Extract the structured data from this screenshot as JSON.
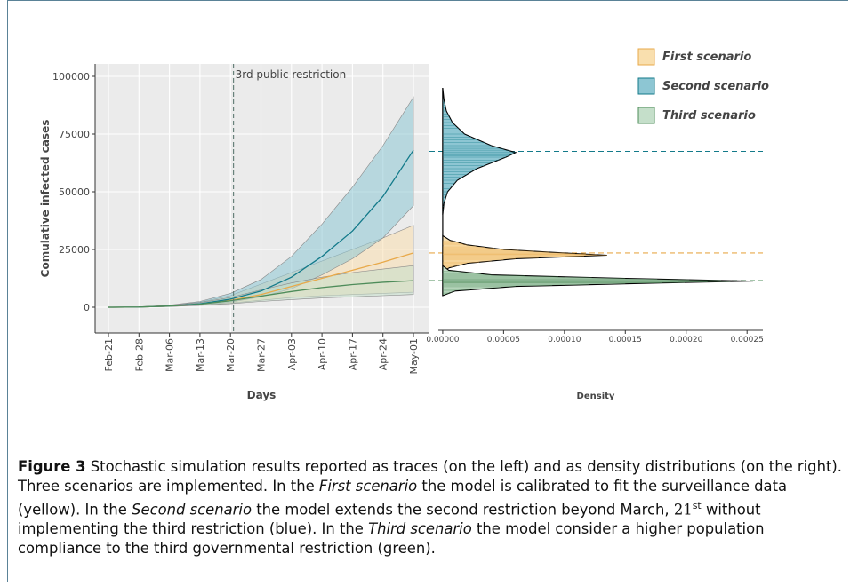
{
  "chart_data": [
    {
      "type": "line",
      "y_label": "Comulative infected cases",
      "x_label": "Days",
      "categories": [
        "Feb-21",
        "Feb-28",
        "Mar-06",
        "Mar-13",
        "Mar-20",
        "Mar-27",
        "Apr-03",
        "Apr-10",
        "Apr-17",
        "Apr-24",
        "May-01"
      ],
      "ylim": [
        -11150,
        105385
      ],
      "yticks": [
        0,
        25000,
        50000,
        75000,
        100000
      ],
      "grid": true,
      "annotations": [
        {
          "text": "3rd public restriction",
          "x": 4.1
        }
      ],
      "series": [
        {
          "name": "First scenario",
          "color": "#e8a94a",
          "fill": "#f9dfae",
          "values": [
            0,
            100,
            500,
            1400,
            3000,
            5500,
            9000,
            12500,
            16000,
            19500,
            23500
          ],
          "upper": [
            0,
            150,
            800,
            2200,
            5000,
            10000,
            15000,
            20000,
            25000,
            30000,
            35500
          ],
          "lower": [
            0,
            50,
            300,
            900,
            1800,
            3000,
            4200,
            5000,
            5500,
            6000,
            6500
          ]
        },
        {
          "name": "Second scenario",
          "color": "#137a8a",
          "fill": "#8dc6d3",
          "values": [
            0,
            100,
            500,
            1500,
            3500,
            7000,
            13000,
            22000,
            33000,
            48000,
            68000
          ],
          "upper": [
            0,
            150,
            900,
            2500,
            6000,
            12000,
            22000,
            36000,
            52000,
            70000,
            91000
          ],
          "lower": [
            0,
            50,
            300,
            1000,
            2200,
            4500,
            8000,
            14000,
            21000,
            30000,
            44000
          ]
        },
        {
          "name": "Third scenario",
          "color": "#4e8c5a",
          "fill": "#c5dfca",
          "values": [
            0,
            100,
            500,
            1300,
            2800,
            4800,
            6800,
            8500,
            9800,
            10800,
            11500
          ],
          "upper": [
            0,
            150,
            800,
            2000,
            4200,
            7500,
            10500,
            13000,
            15000,
            16500,
            18000
          ],
          "lower": [
            0,
            50,
            300,
            800,
            1500,
            2500,
            3300,
            4000,
            4500,
            5000,
            5500
          ]
        }
      ],
      "legend": "top-right"
    },
    {
      "type": "density",
      "x_label": "Density",
      "xlim": [
        -1.09e-05,
        0.000263
      ],
      "xticks": [
        {
          "value": 0,
          "label": "0.00000"
        },
        5e-05,
        {
          "value": 0.0001,
          "label": "0.00010"
        },
        0.00015,
        {
          "value": 0.0002,
          "label": "0.00020"
        },
        0.00025
      ],
      "ylim": [
        -11150,
        105385
      ],
      "series": [
        {
          "color": "#137a8a",
          "fill": "#8dc6d3",
          "reference": 67500,
          "x": [
            40000,
            45000,
            50000,
            55000,
            60000,
            65000,
            67000,
            70000,
            75000,
            80000,
            85000,
            90000,
            95000
          ],
          "values": [
            0,
            1e-06,
            4e-06,
            1.2e-05,
            2.8e-05,
            5.2e-05,
            6e-05,
            4e-05,
            1.8e-05,
            8e-06,
            3e-06,
            1e-06,
            0
          ]
        },
        {
          "color": "#e8a94a",
          "fill": "#f9dfae",
          "reference": 23500,
          "x": [
            15000,
            17000,
            19000,
            21000,
            22500,
            23500,
            25000,
            27000,
            29000,
            31000
          ],
          "values": [
            0,
            5e-06,
            2e-05,
            6e-05,
            0.000135,
            0.0001,
            5e-05,
            2e-05,
            6e-06,
            0
          ]
        },
        {
          "color": "#4e8c5a",
          "fill": "#c5dfca",
          "reference": 11500,
          "x": [
            5000,
            7000,
            9000,
            10500,
            11300,
            12500,
            14000,
            16000,
            18000
          ],
          "values": [
            0,
            1e-05,
            6e-05,
            0.00018,
            0.000255,
            0.00015,
            4e-05,
            5e-06,
            0
          ]
        }
      ]
    }
  ],
  "caption": {
    "label": "Figure 3",
    "parts": [
      "Stochastic simulation results reported as traces (on the left) and as density distributions (on the right). Three scenarios are implemented. In the ",
      "First scenario",
      " the model is calibrated to fit the surveillance data (yellow). In the ",
      "Second scenario",
      " the model extends the second restriction beyond March, ",
      "21",
      "st",
      " without implementing the third restriction (blue). In the ",
      "Third scenario",
      " the model consider a higher population compliance to the third governmental restriction (green)."
    ]
  }
}
